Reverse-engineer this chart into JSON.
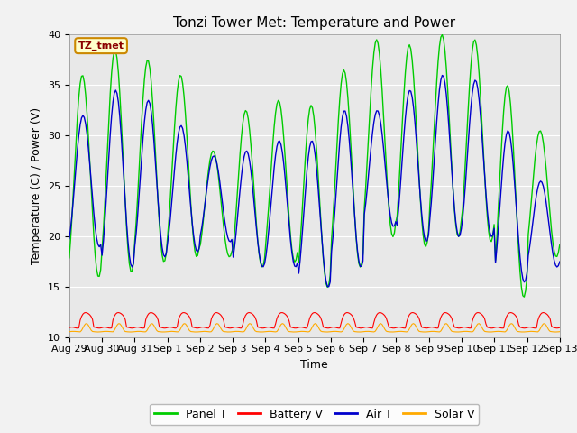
{
  "title": "Tonzi Tower Met: Temperature and Power",
  "xlabel": "Time",
  "ylabel": "Temperature (C) / Power (V)",
  "ylim": [
    10,
    40
  ],
  "annotation_text": "TZ_tmet",
  "bg_color": "#e8e8e8",
  "fig_color": "#f2f2f2",
  "tick_labels": [
    "Aug 29",
    "Aug 30",
    "Aug 31",
    "Sep 1",
    "Sep 2",
    "Sep 3",
    "Sep 4",
    "Sep 5",
    "Sep 6",
    "Sep 7",
    "Sep 8",
    "Sep 9",
    "Sep 10",
    "Sep 11",
    "Sep 12",
    "Sep 13"
  ],
  "colors": {
    "panel_t": "#00cc00",
    "battery_v": "#ff0000",
    "air_t": "#0000cc",
    "solar_v": "#ffaa00"
  },
  "legend_labels": [
    "Panel T",
    "Battery V",
    "Air T",
    "Solar V"
  ],
  "yticks": [
    10,
    15,
    20,
    25,
    30,
    35,
    40
  ],
  "peaks_panel": [
    36,
    38.5,
    37.5,
    36,
    28.5,
    32.5,
    33.5,
    33,
    36.5,
    39.5,
    39,
    40,
    39.5,
    35,
    30.5
  ],
  "mins_panel": [
    16,
    16.5,
    17.5,
    18,
    18,
    17,
    17.5,
    15,
    17,
    20,
    19,
    20,
    19.5,
    14,
    18
  ],
  "peaks_air": [
    32,
    34.5,
    33.5,
    31,
    28,
    28.5,
    29.5,
    29.5,
    32.5,
    32.5,
    34.5,
    36,
    35.5,
    30.5,
    25.5
  ],
  "mins_air": [
    19,
    17,
    18,
    18.5,
    19.5,
    17,
    17,
    15,
    17,
    21,
    19.5,
    20,
    20,
    15.5,
    17
  ],
  "n_days": 15,
  "n_hours": 360
}
